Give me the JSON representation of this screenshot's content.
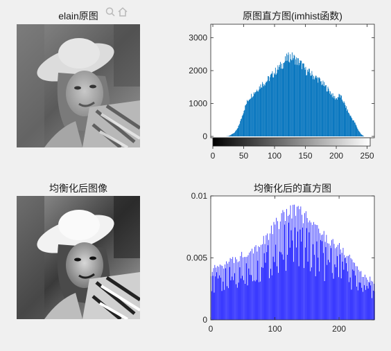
{
  "panels": {
    "orig_image": {
      "title": "elain原图"
    },
    "eq_image": {
      "title": "均衡化后图像"
    },
    "orig_hist": {
      "title": "原图直方图(imhist函数)"
    },
    "eq_hist": {
      "title": "均衡化后的直方图"
    }
  },
  "toolbar": {
    "icons": [
      "zoom-icon",
      "home-icon"
    ]
  },
  "colors": {
    "orig_bar": "#0072bd",
    "eq_bar": "#0000ff",
    "axes_bg": "#ffffff",
    "figure_bg": "#f0f0f0"
  },
  "chart_data": [
    {
      "type": "bar",
      "title": "原图直方图(imhist函数)",
      "xlim": [
        0,
        255
      ],
      "ylim": [
        0,
        3200
      ],
      "xticks": [
        0,
        50,
        100,
        150,
        200,
        250
      ],
      "yticks": [
        0,
        1000,
        2000,
        3000
      ],
      "colorbar": "grayscale",
      "x": [
        0,
        10,
        20,
        25,
        30,
        35,
        40,
        45,
        50,
        55,
        60,
        65,
        70,
        75,
        80,
        85,
        90,
        95,
        100,
        105,
        110,
        115,
        120,
        125,
        130,
        135,
        140,
        145,
        150,
        155,
        160,
        165,
        170,
        175,
        180,
        185,
        190,
        195,
        200,
        205,
        210,
        215,
        220,
        225,
        230,
        235,
        240,
        245,
        255
      ],
      "values": [
        0,
        0,
        0,
        10,
        60,
        120,
        250,
        500,
        800,
        1050,
        1200,
        1300,
        1400,
        1500,
        1600,
        1650,
        1750,
        1850,
        1950,
        2050,
        2150,
        2250,
        2380,
        2420,
        2400,
        2300,
        2250,
        2150,
        2000,
        1950,
        1880,
        1800,
        1750,
        1650,
        1550,
        1450,
        1350,
        1200,
        1150,
        1250,
        1100,
        900,
        700,
        550,
        400,
        200,
        60,
        0,
        0
      ]
    },
    {
      "type": "bar",
      "title": "均衡化后的直方图",
      "xlim": [
        0,
        255
      ],
      "ylim": [
        0,
        0.01
      ],
      "xticks": [
        0,
        100,
        200
      ],
      "yticks": [
        0,
        0.005,
        0.01
      ],
      "ytick_labels": [
        "0",
        "0.005",
        "0.01"
      ],
      "x": [
        0,
        10,
        20,
        30,
        40,
        50,
        60,
        70,
        80,
        90,
        100,
        110,
        120,
        130,
        140,
        150,
        160,
        170,
        180,
        190,
        200,
        210,
        220,
        230,
        240,
        250,
        255
      ],
      "values": [
        0.0038,
        0.0045,
        0.0046,
        0.0048,
        0.005,
        0.0054,
        0.0058,
        0.006,
        0.0064,
        0.007,
        0.0078,
        0.0083,
        0.009,
        0.0091,
        0.0088,
        0.0084,
        0.0078,
        0.0073,
        0.0068,
        0.0064,
        0.006,
        0.0055,
        0.005,
        0.0042,
        0.0035,
        0.0033,
        0.0032
      ]
    }
  ]
}
